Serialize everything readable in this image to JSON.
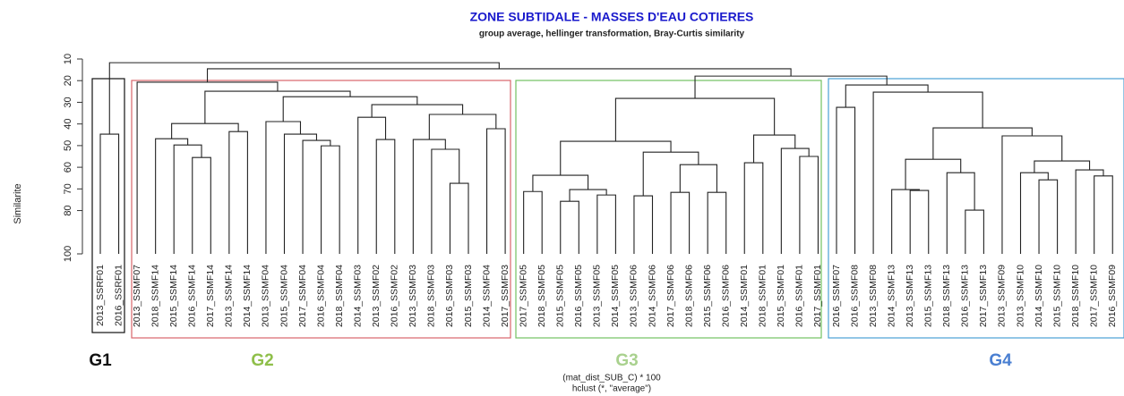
{
  "chart_data": {
    "type": "dendrogram",
    "title": "ZONE SUBTIDALE - MASSES D'EAU COTIERES",
    "subtitle": "group average, hellinger transformation, Bray-Curtis similarity",
    "ylabel": "Similarite",
    "xlabel": [
      "(mat_dist_SUB_C) * 100",
      "hclust (*, \"average\")"
    ],
    "ylim": [
      10,
      100
    ],
    "yticks": [
      10,
      20,
      30,
      40,
      50,
      60,
      70,
      80,
      100
    ],
    "color": "#222222",
    "labels": [
      "2013_SSRF01",
      "2016_SSRF01",
      "2013_SSMF07",
      "2018_SSMF14",
      "2015_SSMF14",
      "2016_SSMF14",
      "2017_SSMF14",
      "2013_SSMF14",
      "2014_SSMF14",
      "2013_SSMF04",
      "2015_SSMF04",
      "2017_SSMF04",
      "2016_SSMF04",
      "2018_SSMF04",
      "2014_SSMF03",
      "2013_SSMF02",
      "2016_SSMF02",
      "2013_SSMF03",
      "2018_SSMF03",
      "2016_SSMF03",
      "2015_SSMF03",
      "2014_SSMF04",
      "2017_SSMF03",
      "2017_SSMF05",
      "2018_SSMF05",
      "2015_SSMF05",
      "2016_SSMF05",
      "2013_SSMF05",
      "2014_SSMF05",
      "2013_SSMF06",
      "2014_SSMF06",
      "2017_SSMF06",
      "2018_SSMF06",
      "2015_SSMF06",
      "2016_SSMF06",
      "2014_SSMF01",
      "2018_SSMF01",
      "2015_SSMF01",
      "2016_SSMF01",
      "2017_SSMF01",
      "2016_SSMF07",
      "2016_SSMF08",
      "2013_SSMF08",
      "2014_SSMF13",
      "2013_SSMF13",
      "2015_SSMF13",
      "2018_SSMF13",
      "2016_SSMF13",
      "2017_SSMF13",
      "2013_SSMF09",
      "2013_SSMF10",
      "2014_SSMF10",
      "2015_SSMF10",
      "2018_SSMF10",
      "2017_SSMF10",
      "2016_SSMF09"
    ],
    "groups": [
      {
        "name": "G1",
        "color": "#111111"
      },
      {
        "name": "G2",
        "color": "#8fbf4a"
      },
      {
        "name": "G3",
        "color": "#a9d18e"
      },
      {
        "name": "G4",
        "color": "#4a7fd1"
      }
    ],
    "tree": {
      "h": 11.7,
      "c": [
        {
          "h": 44.7,
          "c": [
            0,
            1
          ]
        },
        {
          "h": 14.5,
          "c": [
            {
              "h": 20.7,
              "c": [
                2,
                {
                  "h": 24.9,
                  "c": [
                    {
                      "h": 39.8,
                      "c": [
                        {
                          "h": 46.8,
                          "c": [
                            3,
                            {
                              "h": 49.7,
                              "c": [
                                4,
                                {
                                  "h": 55.5,
                                  "c": [
                                    5,
                                    6
                                  ]
                                }
                              ]
                            }
                          ]
                        },
                        {
                          "h": 43.5,
                          "c": [
                            7,
                            8
                          ]
                        }
                      ]
                    },
                    {
                      "h": 27.4,
                      "c": [
                        {
                          "h": 38.9,
                          "c": [
                            9,
                            {
                              "h": 44.7,
                              "c": [
                                10,
                                {
                                  "h": 47.6,
                                  "c": [
                                    11,
                                    {
                                      "h": 50.1,
                                      "c": [
                                        12,
                                        13
                                      ]
                                    }
                                  ]
                                }
                              ]
                            }
                          ]
                        },
                        {
                          "h": 31.1,
                          "c": [
                            {
                              "h": 36.9,
                              "c": [
                                14,
                                {
                                  "h": 47.2,
                                  "c": [
                                    15,
                                    16
                                  ]
                                }
                              ]
                            },
                            {
                              "h": 35.6,
                              "c": [
                                {
                                  "h": 47.2,
                                  "c": [
                                    17,
                                    {
                                      "h": 51.7,
                                      "c": [
                                        18,
                                        {
                                          "h": 67.4,
                                          "c": [
                                            19,
                                            20
                                          ]
                                        }
                                      ]
                                    }
                                  ]
                                },
                                {
                                  "h": 42.2,
                                  "c": [
                                    21,
                                    22
                                  ]
                                }
                              ]
                            }
                          ]
                        }
                      ]
                    }
                  ]
                }
              ]
            },
            {
              "h": 17.9,
              "c": [
                {
                  "h": 28.2,
                  "c": [
                    {
                      "h": 48.0,
                      "c": [
                        {
                          "h": 63.7,
                          "c": [
                            {
                              "h": 71.2,
                              "c": [
                                23,
                                24
                              ]
                            },
                            {
                              "h": 70.3,
                              "c": [
                                {
                                  "h": 75.7,
                                  "c": [
                                    25,
                                    26
                                  ]
                                },
                                {
                                  "h": 72.8,
                                  "c": [
                                    27,
                                    28
                                  ]
                                }
                              ]
                            }
                          ]
                        },
                        {
                          "h": 53.0,
                          "c": [
                            {
                              "h": 73.2,
                              "c": [
                                29,
                                30
                              ]
                            },
                            {
                              "h": 58.8,
                              "c": [
                                {
                                  "h": 71.6,
                                  "c": [
                                    31,
                                    32
                                  ]
                                },
                                {
                                  "h": 71.6,
                                  "c": [
                                    33,
                                    34
                                  ]
                                }
                              ]
                            }
                          ]
                        }
                      ]
                    },
                    {
                      "h": 45.1,
                      "c": [
                        {
                          "h": 57.9,
                          "c": [
                            35,
                            36
                          ]
                        },
                        {
                          "h": 51.3,
                          "c": [
                            37,
                            {
                              "h": 55.0,
                              "c": [
                                38,
                                39
                              ]
                            }
                          ]
                        }
                      ]
                    }
                  ]
                },
                {
                  "h": 22.0,
                  "c": [
                    {
                      "h": 32.3,
                      "c": [
                        40,
                        41
                      ]
                    },
                    {
                      "h": 25.3,
                      "c": [
                        42,
                        {
                          "h": 41.8,
                          "c": [
                            {
                              "h": 56.3,
                              "c": [
                                {
                                  "h": 70.3,
                                  "c": [
                                    43,
                                    {
                                      "h": 70.7,
                                      "c": [
                                        44,
                                        45
                                      ]
                                    }
                                  ]
                                },
                                {
                                  "h": 62.5,
                                  "c": [
                                    46,
                                    {
                                      "h": 79.8,
                                      "c": [
                                        47,
                                        48
                                      ]
                                    }
                                  ]
                                }
                              ]
                            },
                            {
                              "h": 45.5,
                              "c": [
                                49,
                                {
                                  "h": 57.1,
                                  "c": [
                                    {
                                      "h": 62.5,
                                      "c": [
                                        50,
                                        {
                                          "h": 65.8,
                                          "c": [
                                            51,
                                            52
                                          ]
                                        }
                                      ]
                                    },
                                    {
                                      "h": 61.2,
                                      "c": [
                                        53,
                                        {
                                          "h": 64.0,
                                          "c": [
                                            54,
                                            55
                                          ]
                                        }
                                      ]
                                    }
                                  ]
                                }
                              ]
                            }
                          ]
                        }
                      ]
                    }
                  ]
                }
              ]
            }
          ]
        }
      ]
    }
  }
}
